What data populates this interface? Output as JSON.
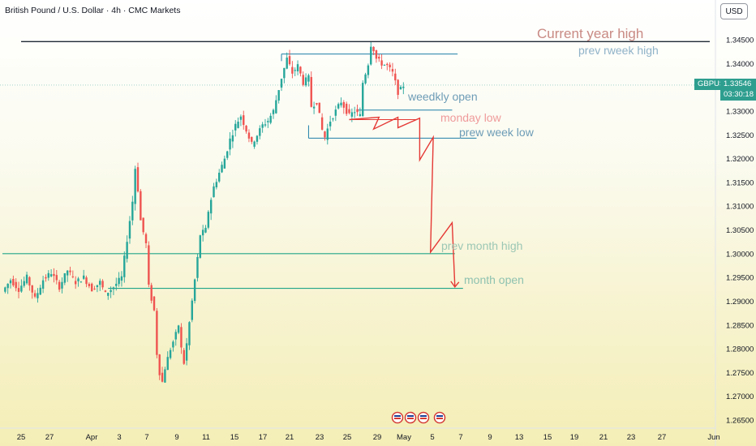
{
  "header": {
    "title": "British Pound / U.S. Dollar · 4h · CMC Markets"
  },
  "currency_button": "USD",
  "price_tag": {
    "symbol": "GBPUSD",
    "price": "1.33546",
    "countdown": "03:30:18"
  },
  "chart_data": {
    "type": "candlestick",
    "title": "British Pound / U.S. Dollar · 4h · CMC Markets",
    "y_ticks": [
      1.345,
      1.34,
      1.335,
      1.33,
      1.325,
      1.32,
      1.315,
      1.31,
      1.305,
      1.3,
      1.295,
      1.29,
      1.285,
      1.28,
      1.275,
      1.27,
      1.265
    ],
    "y_tick_labels": [
      "1.34500",
      "1.34000",
      "1.33500",
      "1.33000",
      "1.32500",
      "1.32000",
      "1.31500",
      "1.31000",
      "1.30500",
      "1.30000",
      "1.29500",
      "1.29000",
      "1.28500",
      "1.28000",
      "1.27500",
      "1.27000",
      "1.26500"
    ],
    "ylim": [
      1.2635,
      1.3495
    ],
    "x_tick_labels": [
      "25",
      "27",
      "Apr",
      "3",
      "7",
      "9",
      "11",
      "15",
      "17",
      "21",
      "23",
      "25",
      "29",
      "May",
      "5",
      "7",
      "9",
      "13",
      "15",
      "19",
      "21",
      "23",
      "27",
      "Jun"
    ],
    "current_price": 1.33546,
    "colors": {
      "up": "#26a69a",
      "down": "#ef5350",
      "annotation_red": "#e53935",
      "level_teal": "#22a58a",
      "level_blue": "#1e7fa8"
    },
    "price_path": [
      [
        0,
        1.292
      ],
      [
        3,
        1.2945
      ],
      [
        6,
        1.2925
      ],
      [
        9,
        1.295
      ],
      [
        12,
        1.2905
      ],
      [
        15,
        1.2945
      ],
      [
        18,
        1.296
      ],
      [
        21,
        1.293
      ],
      [
        24,
        1.2965
      ],
      [
        27,
        1.294
      ],
      [
        30,
        1.295
      ],
      [
        33,
        1.2925
      ],
      [
        36,
        1.294
      ],
      [
        38,
        1.2915
      ],
      [
        41,
        1.293
      ],
      [
        44,
        1.295
      ],
      [
        46,
        1.303
      ],
      [
        48,
        1.311
      ],
      [
        49,
        1.318
      ],
      [
        50,
        1.3135
      ],
      [
        51,
        1.307
      ],
      [
        53,
        1.302
      ],
      [
        54,
        1.293
      ],
      [
        56,
        1.288
      ],
      [
        57,
        1.279
      ],
      [
        58,
        1.275
      ],
      [
        59,
        1.273
      ],
      [
        60,
        1.276
      ],
      [
        62,
        1.28
      ],
      [
        64,
        1.283
      ],
      [
        65,
        1.285
      ],
      [
        66,
        1.28
      ],
      [
        67,
        1.277
      ],
      [
        68,
        1.281
      ],
      [
        70,
        1.29
      ],
      [
        72,
        1.299
      ],
      [
        73,
        1.304
      ],
      [
        75,
        1.305
      ],
      [
        76,
        1.309
      ],
      [
        78,
        1.314
      ],
      [
        80,
        1.317
      ],
      [
        82,
        1.32
      ],
      [
        84,
        1.324
      ],
      [
        86,
        1.327
      ],
      [
        88,
        1.329
      ],
      [
        90,
        1.326
      ],
      [
        92,
        1.323
      ],
      [
        94,
        1.325
      ],
      [
        96,
        1.327
      ],
      [
        98,
        1.328
      ],
      [
        100,
        1.33
      ],
      [
        103,
        1.337
      ],
      [
        105,
        1.341
      ],
      [
        107,
        1.338
      ],
      [
        109,
        1.3395
      ],
      [
        111,
        1.336
      ],
      [
        113,
        1.337
      ],
      [
        114,
        1.331
      ],
      [
        116,
        1.332
      ],
      [
        118,
        1.326
      ],
      [
        119,
        1.3245
      ],
      [
        121,
        1.328
      ],
      [
        123,
        1.33
      ],
      [
        125,
        1.332
      ],
      [
        126,
        1.331
      ],
      [
        128,
        1.329
      ],
      [
        130,
        1.33
      ],
      [
        132,
        1.329
      ],
      [
        133,
        1.336
      ],
      [
        135,
        1.34
      ],
      [
        136,
        1.344
      ],
      [
        137,
        1.343
      ],
      [
        138,
        1.341
      ],
      [
        140,
        1.34
      ],
      [
        142,
        1.3395
      ],
      [
        144,
        1.338
      ],
      [
        145,
        1.336
      ],
      [
        146,
        1.334
      ],
      [
        147,
        1.3345
      ],
      [
        148,
        1.3354
      ]
    ],
    "levels": [
      {
        "label": "Current year high",
        "price": 1.3446,
        "x_from": 0,
        "x_to": 240
      },
      {
        "label": "prev rweek high",
        "price": 1.342,
        "x_from": 103,
        "x_to": 168
      },
      {
        "label": "weedkly open",
        "price": 1.3302,
        "x_from": 131,
        "x_to": 166
      },
      {
        "label": "monday low",
        "price": 1.3282,
        "x_from": 128,
        "x_to": 153
      },
      {
        "label": "prew week low",
        "price": 1.3243,
        "x_from": 113,
        "x_to": 175
      },
      {
        "label": "prev month high",
        "price": 1.3,
        "x_from": 0,
        "x_to": 167
      },
      {
        "label": "month open",
        "price": 1.2927,
        "x_from": 39,
        "x_to": 170
      }
    ],
    "projection_path": [
      [
        128,
        1.3282
      ],
      [
        139,
        1.3287
      ],
      [
        137,
        1.3262
      ],
      [
        146,
        1.3287
      ],
      [
        146,
        1.3265
      ],
      [
        154,
        1.3285
      ],
      [
        154,
        1.3197
      ],
      [
        159,
        1.3245
      ],
      [
        158,
        1.3003
      ],
      [
        166,
        1.3065
      ],
      [
        167,
        1.293
      ]
    ]
  },
  "annotations": {
    "current_year_high": "Current year high",
    "prev_week_high": "prev rweek high",
    "weekly_open": "weedkly open",
    "monday_low": "monday low",
    "prev_week_low": "prew week low",
    "prev_month_high": "prev month high",
    "month_open": "month open"
  }
}
